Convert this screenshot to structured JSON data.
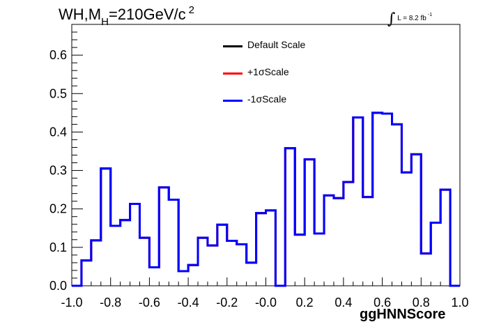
{
  "title": {
    "prefix": "WH,M",
    "sub": "H",
    "main": "=210GeV/c",
    "sup": "2"
  },
  "lumi": {
    "symbol": "∫",
    "text": "L = 8.2 fb",
    "sup": "-1"
  },
  "legend": [
    {
      "label": "Default Scale",
      "color": "#000000"
    },
    {
      "label": "+1σScale",
      "color": "#ff0000"
    },
    {
      "label": "-1σScale",
      "color": "#0000ff"
    }
  ],
  "chart_data": {
    "type": "line",
    "drawstyle": "steps-histogram",
    "xlabel": "ggHNNScore",
    "ylabel": "",
    "xlim": [
      -1.0,
      1.0
    ],
    "ylim": [
      0.0,
      0.68
    ],
    "xticks": [
      "-1.0",
      "-0.8",
      "-0.6",
      "-0.4",
      "-0.2",
      "-0.0",
      "0.2",
      "0.4",
      "0.6",
      "0.8",
      "1.0"
    ],
    "yticks": [
      "0.0",
      "0.1",
      "0.2",
      "0.3",
      "0.4",
      "0.5",
      "0.6"
    ],
    "bin_edges": [
      -1.0,
      -0.95,
      -0.9,
      -0.85,
      -0.8,
      -0.75,
      -0.7,
      -0.65,
      -0.6,
      -0.55,
      -0.5,
      -0.45,
      -0.4,
      -0.35,
      -0.3,
      -0.25,
      -0.2,
      -0.15,
      -0.1,
      -0.05,
      0.0,
      0.05,
      0.1,
      0.15,
      0.2,
      0.25,
      0.3,
      0.35,
      0.4,
      0.45,
      0.5,
      0.55,
      0.6,
      0.65,
      0.7,
      0.75,
      0.8,
      0.85,
      0.9,
      0.95,
      1.0
    ],
    "series": [
      {
        "name": "Default Scale",
        "color": "#000000",
        "values": [
          0.0,
          0.066,
          0.118,
          0.305,
          0.156,
          0.171,
          0.213,
          0.125,
          0.048,
          0.256,
          0.224,
          0.038,
          0.054,
          0.125,
          0.105,
          0.159,
          0.117,
          0.108,
          0.06,
          0.189,
          0.196,
          0.0,
          0.358,
          0.133,
          0.329,
          0.136,
          0.235,
          0.228,
          0.27,
          0.438,
          0.231,
          0.45,
          0.448,
          0.42,
          0.295,
          0.342,
          0.084,
          0.164,
          0.25,
          0.0
        ]
      },
      {
        "name": "+1σScale",
        "color": "#ff0000",
        "values": [
          0.0,
          0.066,
          0.118,
          0.305,
          0.156,
          0.171,
          0.213,
          0.125,
          0.048,
          0.256,
          0.224,
          0.038,
          0.054,
          0.125,
          0.105,
          0.159,
          0.117,
          0.108,
          0.06,
          0.189,
          0.196,
          0.0,
          0.358,
          0.133,
          0.329,
          0.136,
          0.235,
          0.228,
          0.27,
          0.438,
          0.231,
          0.45,
          0.448,
          0.42,
          0.295,
          0.342,
          0.084,
          0.164,
          0.25,
          0.0
        ]
      },
      {
        "name": "-1σScale",
        "color": "#0000ff",
        "values": [
          0.0,
          0.066,
          0.118,
          0.305,
          0.156,
          0.171,
          0.213,
          0.125,
          0.048,
          0.256,
          0.224,
          0.038,
          0.054,
          0.125,
          0.105,
          0.159,
          0.117,
          0.108,
          0.06,
          0.189,
          0.196,
          0.0,
          0.358,
          0.133,
          0.329,
          0.136,
          0.235,
          0.228,
          0.27,
          0.438,
          0.231,
          0.45,
          0.448,
          0.42,
          0.295,
          0.342,
          0.084,
          0.164,
          0.25,
          0.0
        ]
      }
    ],
    "grid": false,
    "legend_position": "top-center"
  }
}
